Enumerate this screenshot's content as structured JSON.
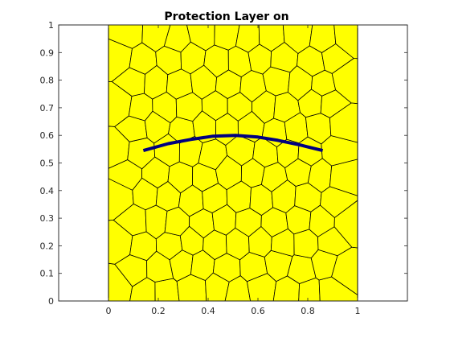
{
  "chart_data": {
    "type": "mesh",
    "title": "Protection Layer on",
    "xlabel": "",
    "ylabel": "",
    "xlim": [
      -0.2,
      1.2
    ],
    "ylim": [
      0,
      1
    ],
    "x_ticks": [
      "0",
      "0.2",
      "0.4",
      "0.6",
      "0.8",
      "1"
    ],
    "y_ticks": [
      "0",
      "0.1",
      "0.2",
      "0.3",
      "0.4",
      "0.5",
      "0.6",
      "0.7",
      "0.8",
      "0.9",
      "1"
    ],
    "grid": false,
    "mesh": {
      "domain": {
        "x": [
          0,
          1
        ],
        "y": [
          0,
          1
        ]
      },
      "fill_color": "#FFFF00",
      "edge_color": "#000000"
    },
    "polyline": {
      "color": "#000080",
      "x": [
        0.14,
        0.24,
        0.33,
        0.42,
        0.51,
        0.6,
        0.68,
        0.77,
        0.86
      ],
      "y": [
        0.545,
        0.57,
        0.585,
        0.597,
        0.6,
        0.594,
        0.582,
        0.565,
        0.545
      ]
    }
  }
}
